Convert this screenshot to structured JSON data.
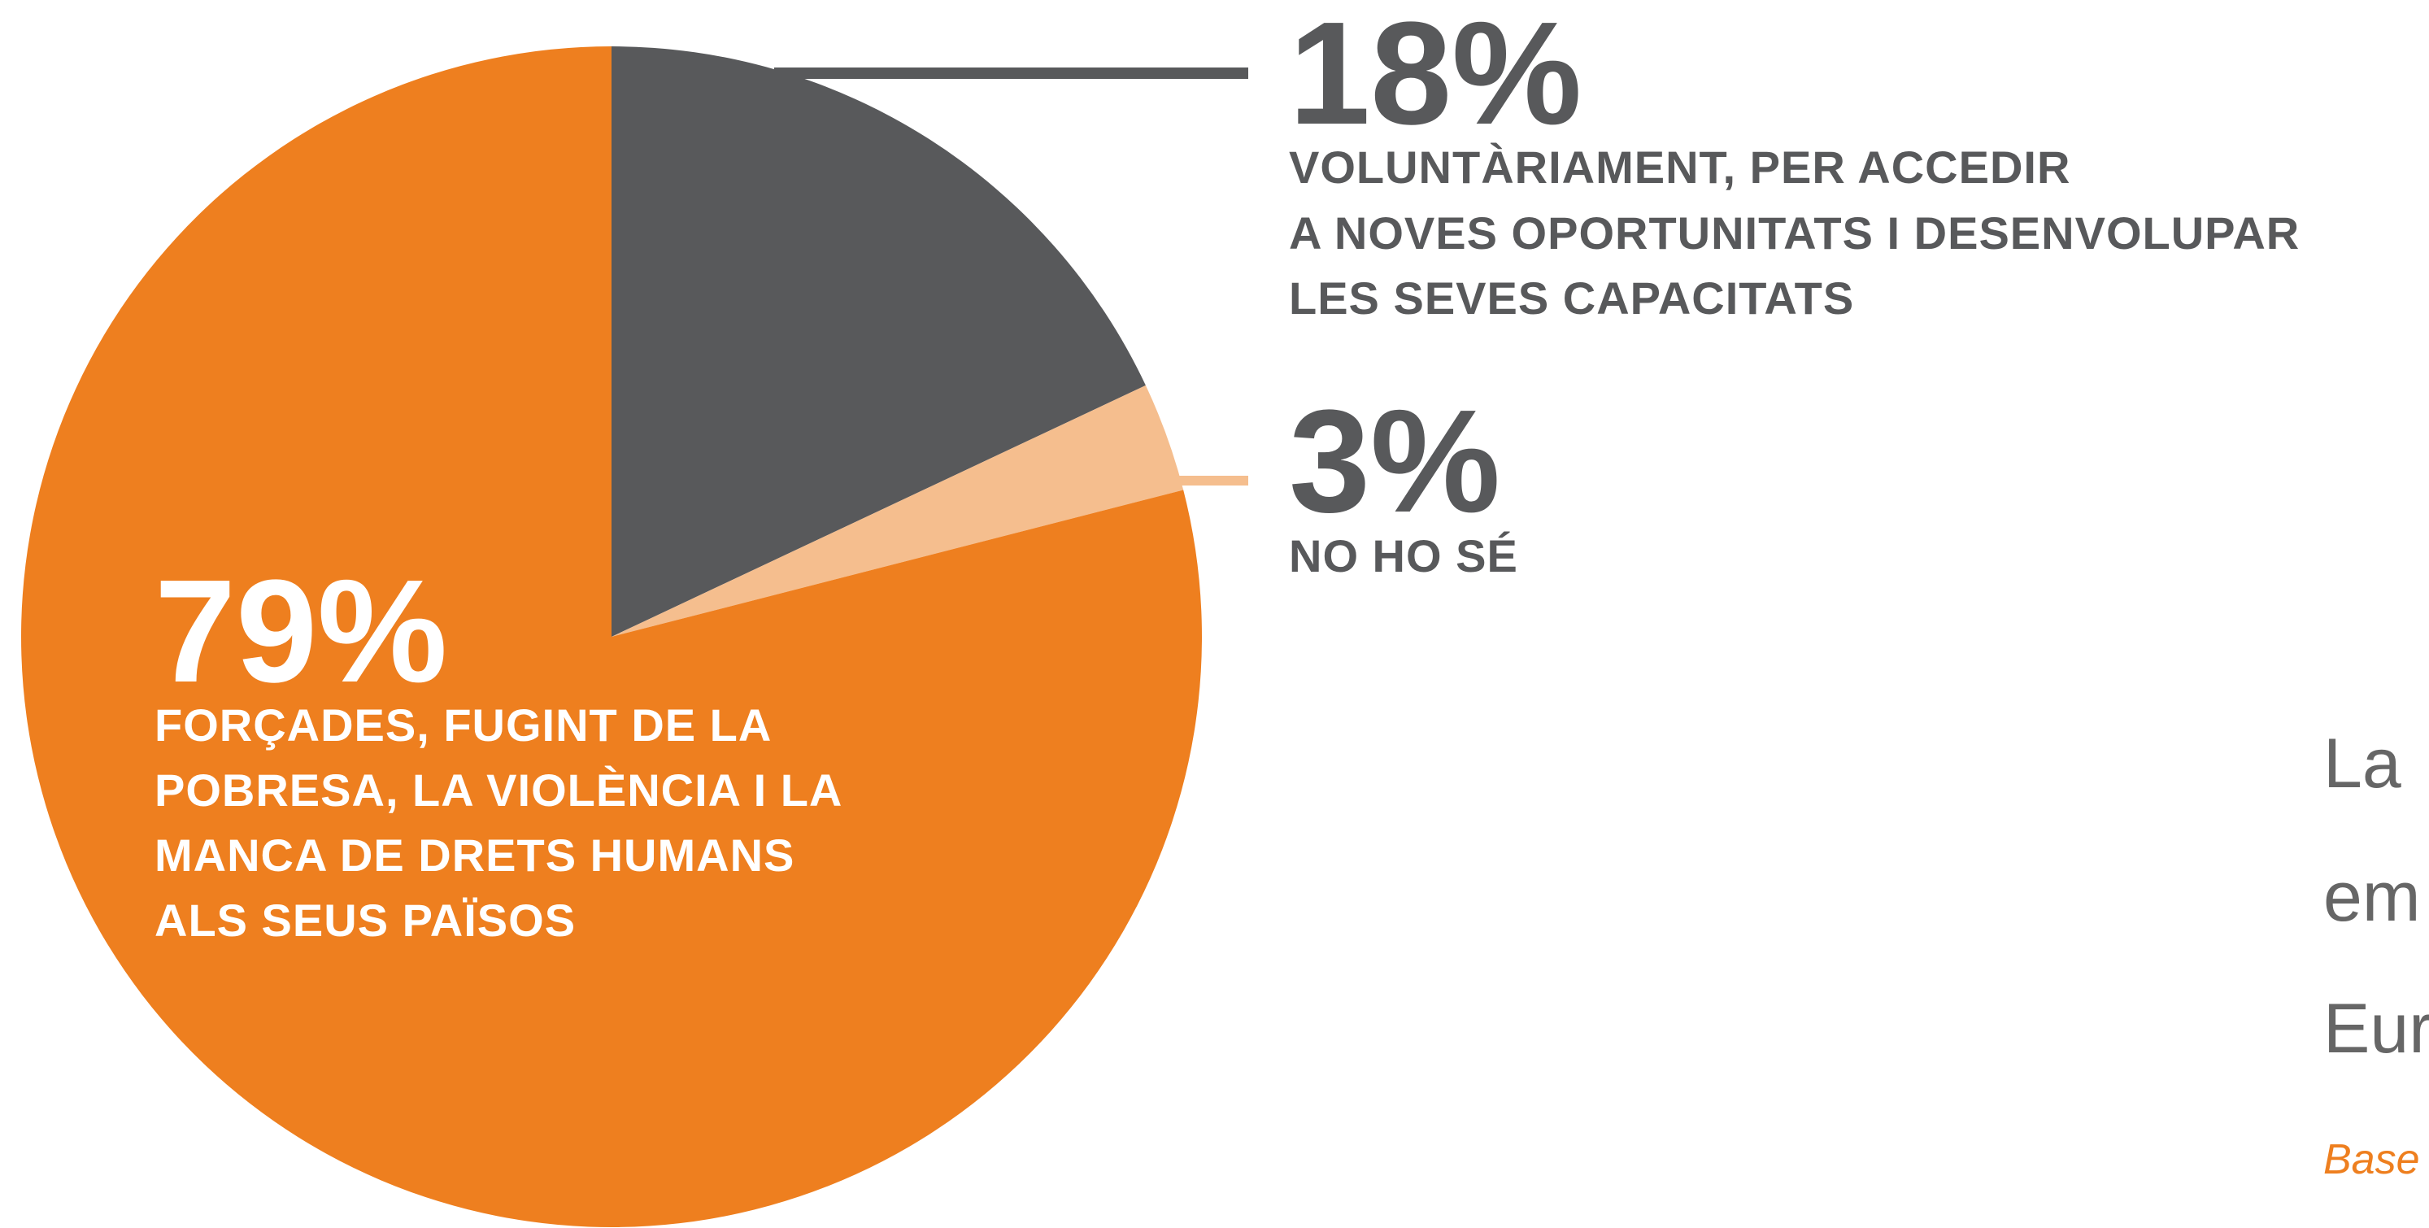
{
  "chart_data": {
    "type": "pie",
    "values": [
      18,
      3,
      79
    ],
    "value_labels": [
      "18%",
      "3%",
      "79%"
    ],
    "categories": [
      [
        "VOLUNTÀRIAMENT, PER ACCEDIR",
        "A NOVES OPORTUNITATS I DESENVOLUPAR",
        "LES SEVES CAPACITATS"
      ],
      [
        "NO HO SÉ"
      ],
      [
        "FORÇADES, FUGINT DE LA",
        "POBRESA, LA VIOLÈNCIA I LA",
        "MANCA DE DRETS HUMANS",
        "ALS SEUS PAÏSOS"
      ]
    ],
    "colors": [
      "#58595b",
      "#f5be8e",
      "#ee7f1f"
    ]
  },
  "side_text": [
    "La",
    "em",
    "Eur"
  ],
  "note": "Base"
}
